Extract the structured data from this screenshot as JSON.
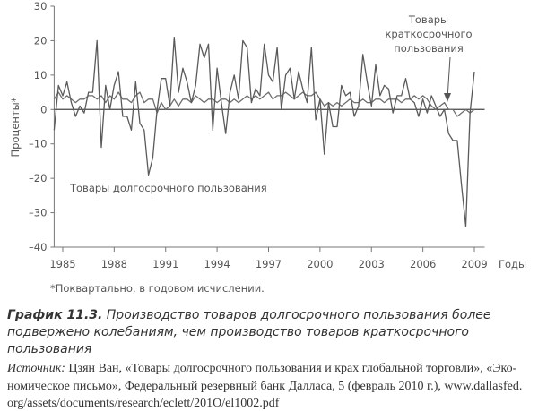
{
  "chart_data": {
    "type": "line",
    "y_label": "Проценты*",
    "x_label": "Годы",
    "xlim": [
      1984.5,
      2009.6
    ],
    "xticks": [
      1985,
      1988,
      1991,
      1994,
      1997,
      2000,
      2003,
      2006,
      2009
    ],
    "ylim": [
      -40,
      30
    ],
    "yticks": [
      {
        "value": -40,
        "label": "–40"
      },
      {
        "value": -30,
        "label": "–30"
      },
      {
        "value": -20,
        "label": "–20"
      },
      {
        "value": -10,
        "label": "–10"
      },
      0,
      10,
      20,
      30
    ],
    "x": [
      1984.5,
      1984.75,
      1985,
      1985.25,
      1985.5,
      1985.75,
      1986,
      1986.25,
      1986.5,
      1986.75,
      1987,
      1987.25,
      1987.5,
      1987.75,
      1988,
      1988.25,
      1988.5,
      1988.75,
      1989,
      1989.25,
      1989.5,
      1989.75,
      1990,
      1990.25,
      1990.5,
      1990.75,
      1991,
      1991.25,
      1991.5,
      1991.75,
      1992,
      1992.25,
      1992.5,
      1992.75,
      1993,
      1993.25,
      1993.5,
      1993.75,
      1994,
      1994.25,
      1994.5,
      1994.75,
      1995,
      1995.25,
      1995.5,
      1995.75,
      1996,
      1996.25,
      1996.5,
      1996.75,
      1997,
      1997.25,
      1997.5,
      1997.75,
      1998,
      1998.25,
      1998.5,
      1998.75,
      1999,
      1999.25,
      1999.5,
      1999.75,
      2000,
      2000.25,
      2000.5,
      2000.75,
      2001,
      2001.25,
      2001.5,
      2001.75,
      2002,
      2002.25,
      2002.5,
      2002.75,
      2003,
      2003.25,
      2003.5,
      2003.75,
      2004,
      2004.25,
      2004.5,
      2004.75,
      2005,
      2005.25,
      2005.5,
      2005.75,
      2006,
      2006.25,
      2006.5,
      2006.75,
      2007,
      2007.25,
      2007.5,
      2007.75,
      2008,
      2008.25,
      2008.5,
      2008.75,
      2009
    ],
    "series": [
      {
        "name": "Товары долгосрочного пользования",
        "color": "#5a5a5a",
        "values": [
          -6,
          7,
          4,
          8,
          2,
          -2,
          1,
          -1,
          5,
          5,
          20,
          -11,
          7,
          0,
          7,
          11,
          -2,
          -2,
          -6,
          8,
          -4,
          -6,
          -19,
          -14,
          0,
          9,
          9,
          1,
          21,
          5,
          12,
          8,
          2,
          7,
          19,
          15,
          19,
          -6,
          12,
          2,
          -7,
          5,
          10,
          3,
          20,
          18,
          2,
          6,
          4,
          19,
          10,
          8,
          18,
          0,
          10,
          12,
          3,
          11,
          6,
          2,
          18,
          -3,
          3,
          -13,
          2,
          -5,
          -5,
          7,
          4,
          5,
          -2,
          1,
          16,
          8,
          1,
          13,
          4,
          7,
          6,
          -1,
          4,
          4,
          9,
          3,
          2,
          -2,
          3,
          -1,
          4,
          1,
          -2,
          0,
          -7,
          -9,
          -9,
          -22,
          -34,
          -1,
          11
        ]
      },
      {
        "name": "Товары краткосрочного пользования",
        "color": "#6e6e6e",
        "values": [
          3,
          5,
          3,
          4,
          3,
          2,
          3,
          3,
          4,
          4,
          3,
          4,
          2,
          4,
          3,
          5,
          3,
          3,
          2,
          4,
          5,
          2,
          3,
          3,
          -1,
          2,
          0,
          1,
          3,
          1,
          3,
          3,
          2,
          4,
          3,
          2,
          3,
          3,
          2,
          3,
          3,
          2,
          3,
          2,
          3,
          4,
          3,
          4,
          3,
          4,
          5,
          3,
          4,
          4,
          5,
          4,
          3,
          4,
          5,
          4,
          4,
          5,
          3,
          1,
          2,
          1,
          2,
          1,
          2,
          3,
          2,
          2,
          3,
          2,
          2,
          3,
          3,
          2,
          3,
          3,
          3,
          2,
          3,
          3,
          4,
          3,
          4,
          3,
          1,
          0,
          1,
          2,
          0,
          0,
          -2,
          -1,
          0,
          -1,
          0
        ]
      }
    ],
    "annotation_short": [
      "Товары",
      "краткосрочного",
      "пользования"
    ],
    "footnote": "*Поквартально, в годовом исчислении.",
    "caption_label": "График 11.3.",
    "caption_lines": [
      " Производство товаров долгосрочного пользования более",
      "подвержено колебаниям, чем производство товаров краткосрочного",
      "пользования"
    ],
    "source_label": "Источник:",
    "source_lines": [
      " Цзян Ван, «Товары долгосрочного пользования и крах глобальной торговли», «Эко-",
      "номическое письмо», Федеральный резервный банк Далласа, 5 (февраль 2010 г.), www.dallasfed.",
      "org/assets/documents/research/eclett/201O/el1002.pdf"
    ]
  }
}
